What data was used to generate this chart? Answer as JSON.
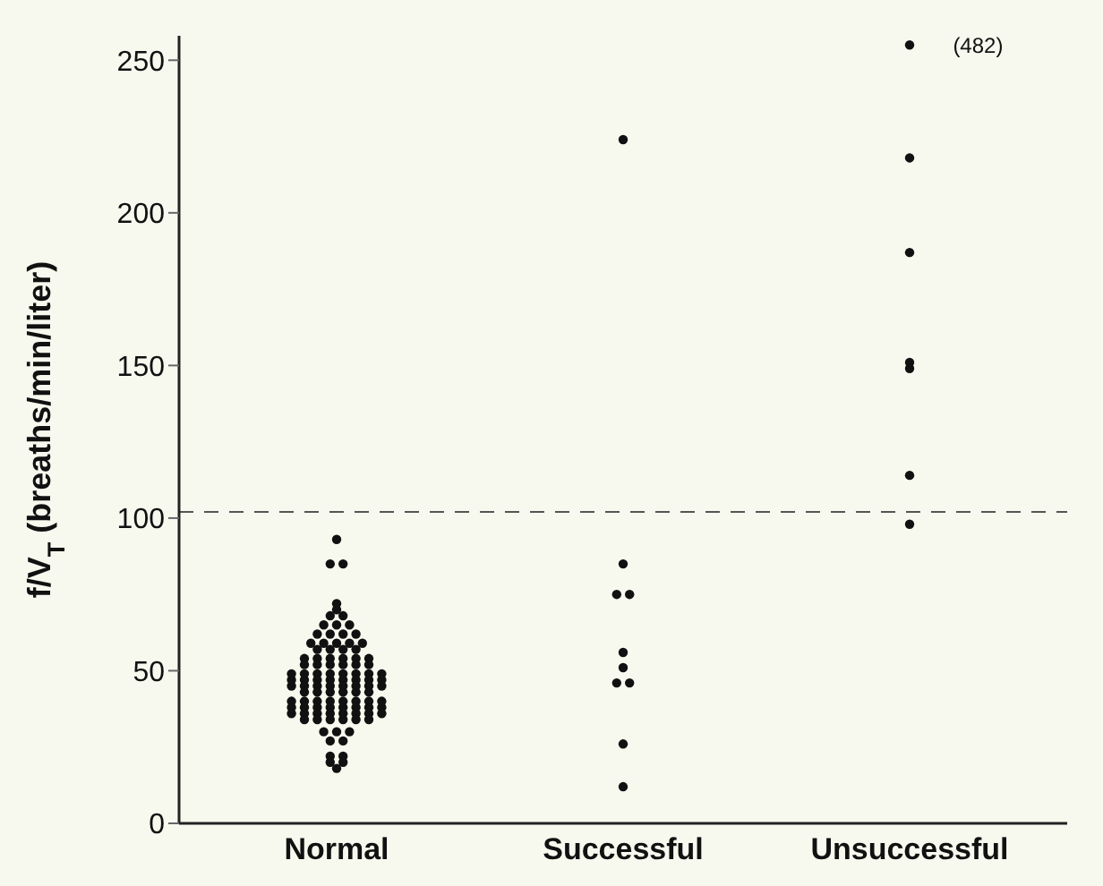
{
  "chart_data": {
    "type": "scatter",
    "ylabel": "f/V$_{T}$ (breaths/min/liter)",
    "categories": [
      "Normal",
      "Successful",
      "Unsuccessful"
    ],
    "series": [
      {
        "color": "#111111",
        "x": [
          "Normal",
          "Normal",
          "Normal",
          "Normal",
          "Normal",
          "Normal",
          "Normal",
          "Normal",
          "Normal",
          "Normal",
          "Normal",
          "Normal",
          "Normal",
          "Normal",
          "Normal",
          "Normal",
          "Normal",
          "Normal",
          "Normal",
          "Normal",
          "Normal",
          "Normal",
          "Normal",
          "Normal",
          "Normal",
          "Normal",
          "Normal",
          "Normal",
          "Normal",
          "Normal",
          "Normal",
          "Normal",
          "Normal",
          "Normal",
          "Normal",
          "Normal",
          "Normal",
          "Normal",
          "Normal",
          "Normal",
          "Normal",
          "Normal",
          "Normal",
          "Normal",
          "Normal",
          "Normal",
          "Normal",
          "Normal",
          "Normal",
          "Normal",
          "Normal",
          "Normal",
          "Normal",
          "Normal",
          "Normal",
          "Normal",
          "Normal",
          "Normal",
          "Normal",
          "Normal",
          "Normal",
          "Normal",
          "Normal",
          "Normal",
          "Normal",
          "Normal",
          "Normal",
          "Normal",
          "Normal",
          "Normal",
          "Normal",
          "Normal",
          "Normal",
          "Normal",
          "Normal",
          "Normal",
          "Normal",
          "Normal",
          "Normal",
          "Normal",
          "Normal",
          "Normal",
          "Normal",
          "Normal",
          "Normal",
          "Normal",
          "Normal",
          "Normal",
          "Normal",
          "Normal",
          "Normal",
          "Normal",
          "Normal",
          "Normal",
          "Normal",
          "Normal",
          "Normal",
          "Normal",
          "Normal",
          "Normal"
        ],
        "values": [
          93,
          85,
          85,
          72,
          70,
          68,
          68,
          65,
          65,
          65,
          62,
          62,
          62,
          62,
          59,
          59,
          59,
          59,
          59,
          57,
          57,
          57,
          57,
          54,
          54,
          54,
          54,
          54,
          54,
          52,
          52,
          52,
          52,
          52,
          52,
          49,
          49,
          49,
          49,
          49,
          49,
          49,
          49,
          47,
          47,
          47,
          47,
          47,
          47,
          47,
          47,
          45,
          45,
          45,
          45,
          45,
          45,
          45,
          45,
          43,
          43,
          43,
          43,
          43,
          43,
          40,
          40,
          40,
          40,
          40,
          40,
          40,
          40,
          38,
          38,
          38,
          38,
          38,
          38,
          38,
          38,
          36,
          36,
          36,
          36,
          36,
          36,
          36,
          36,
          34,
          34,
          34,
          34,
          34,
          34,
          30,
          30,
          30,
          27,
          27
        ]
      },
      {
        "color": "#111111",
        "x": [
          "Normal",
          "Normal",
          "Normal",
          "Normal",
          "Normal",
          "Successful",
          "Successful",
          "Successful",
          "Successful",
          "Successful",
          "Successful",
          "Successful",
          "Successful",
          "Successful",
          "Successful",
          "Unsuccessful",
          "Unsuccessful",
          "Unsuccessful",
          "Unsuccessful",
          "Unsuccessful",
          "Unsuccessful",
          "Unsuccessful"
        ],
        "values": [
          22,
          22,
          20,
          20,
          18,
          224,
          85,
          75,
          75,
          56,
          51,
          46,
          46,
          26,
          12,
          255,
          218,
          187,
          151,
          149,
          114,
          98
        ]
      }
    ],
    "ylim": [
      0,
      258
    ],
    "yticks": [
      0,
      50,
      100,
      150,
      200,
      250
    ],
    "marker": "circle",
    "ref_lines": [
      {
        "axis": "y",
        "value": 102,
        "line_style": "dashed",
        "color": "#555555"
      }
    ],
    "annotations": [
      {
        "text": "(482)",
        "x": "Unsuccessful",
        "y": 255
      }
    ]
  }
}
